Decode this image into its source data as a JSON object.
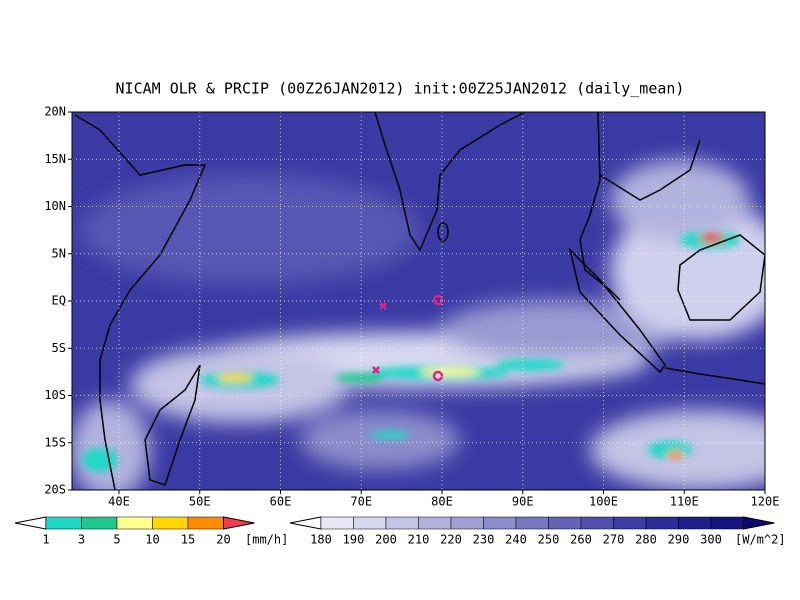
{
  "title": "NICAM OLR & PRCIP (00Z26JAN2012) init:00Z25JAN2012 (daily_mean)",
  "map": {
    "lat_labels": [
      "20N",
      "15N",
      "10N",
      "5N",
      "EQ",
      "5S",
      "10S",
      "15S",
      "20S"
    ],
    "lon_labels": [
      "40E",
      "50E",
      "60E",
      "70E",
      "80E",
      "90E",
      "100E",
      "110E",
      "120E"
    ]
  },
  "precip_legend": {
    "labels": [
      1,
      3,
      5,
      10,
      15,
      20
    ],
    "unit": "[mm/h]",
    "colors": [
      "#ffffff",
      "#20d8c8",
      "#20c890",
      "#ffff90",
      "#ffd800",
      "#ff8c00",
      "#f03c50"
    ]
  },
  "olr_legend": {
    "labels": [
      180,
      190,
      200,
      210,
      220,
      230,
      240,
      250,
      260,
      270,
      280,
      290,
      300
    ],
    "unit": "[W/m^2]",
    "colors": [
      "#ffffff",
      "#e8e8f6",
      "#d6d6ee",
      "#c4c4e6",
      "#b2b2de",
      "#a0a0d4",
      "#8c8cca",
      "#7878c0",
      "#6464b6",
      "#5050ac",
      "#3c3ca2",
      "#2c2c98",
      "#1e1e8c",
      "#14147e",
      "#0a0a70"
    ]
  }
}
